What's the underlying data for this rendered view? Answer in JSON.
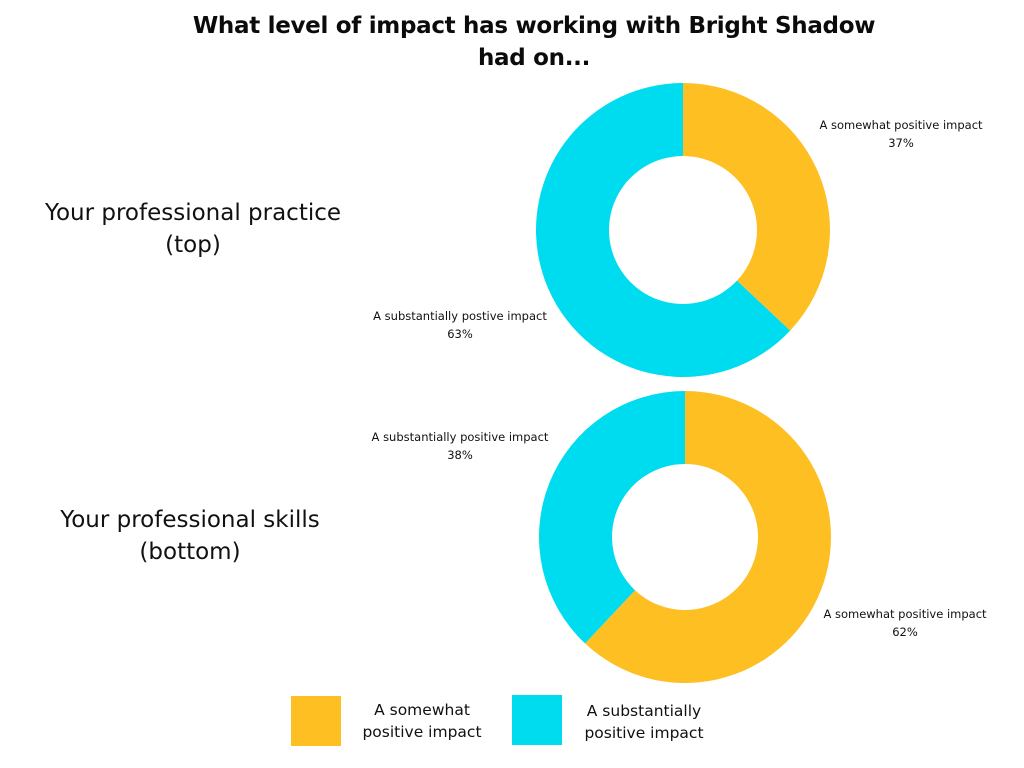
{
  "title": "What level of impact has working with Bright Shadow had on...",
  "colors": {
    "somewhat": "#FDBF21",
    "substantially": "#00DCEF"
  },
  "side_labels": {
    "top_line1": "Your professional practice",
    "top_line2": "(top)",
    "bottom_line1": "Your professional skills",
    "bottom_line2": "(bottom)"
  },
  "top_chart": {
    "somewhat_label": "A somewhat positive impact",
    "somewhat_pct": "37%",
    "substantially_label": "A substantially postive impact",
    "substantially_pct": "63%"
  },
  "bottom_chart": {
    "substantially_label": "A substantially positive impact",
    "substantially_pct": "38%",
    "somewhat_label": "A somewhat positive impact",
    "somewhat_pct": "62%"
  },
  "legend": {
    "somewhat_line1": "A somewhat",
    "somewhat_line2": "positive impact",
    "substantially_line1": "A substantially",
    "substantially_line2": "positive impact"
  },
  "chart_data": [
    {
      "type": "pie",
      "subtype": "donut",
      "title": "What level of impact has working with Bright Shadow had on... Your professional practice (top)",
      "categories": [
        "A somewhat positive impact",
        "A substantially positive impact"
      ],
      "values": [
        37,
        63
      ],
      "unit": "%",
      "colors": [
        "#FDBF21",
        "#00DCEF"
      ],
      "start_angle": "12 o'clock, clockwise",
      "data_labels": [
        "A somewhat positive impact 37%",
        "A substantially postive impact 63%"
      ]
    },
    {
      "type": "pie",
      "subtype": "donut",
      "title": "What level of impact has working with Bright Shadow had on... Your professional skills (bottom)",
      "categories": [
        "A somewhat positive impact",
        "A substantially positive impact"
      ],
      "values": [
        62,
        38
      ],
      "unit": "%",
      "colors": [
        "#FDBF21",
        "#00DCEF"
      ],
      "start_angle": "12 o'clock, clockwise",
      "data_labels": [
        "A somewhat positive impact 62%",
        "A substantially positive impact 38%"
      ]
    }
  ],
  "legend_position": "bottom"
}
